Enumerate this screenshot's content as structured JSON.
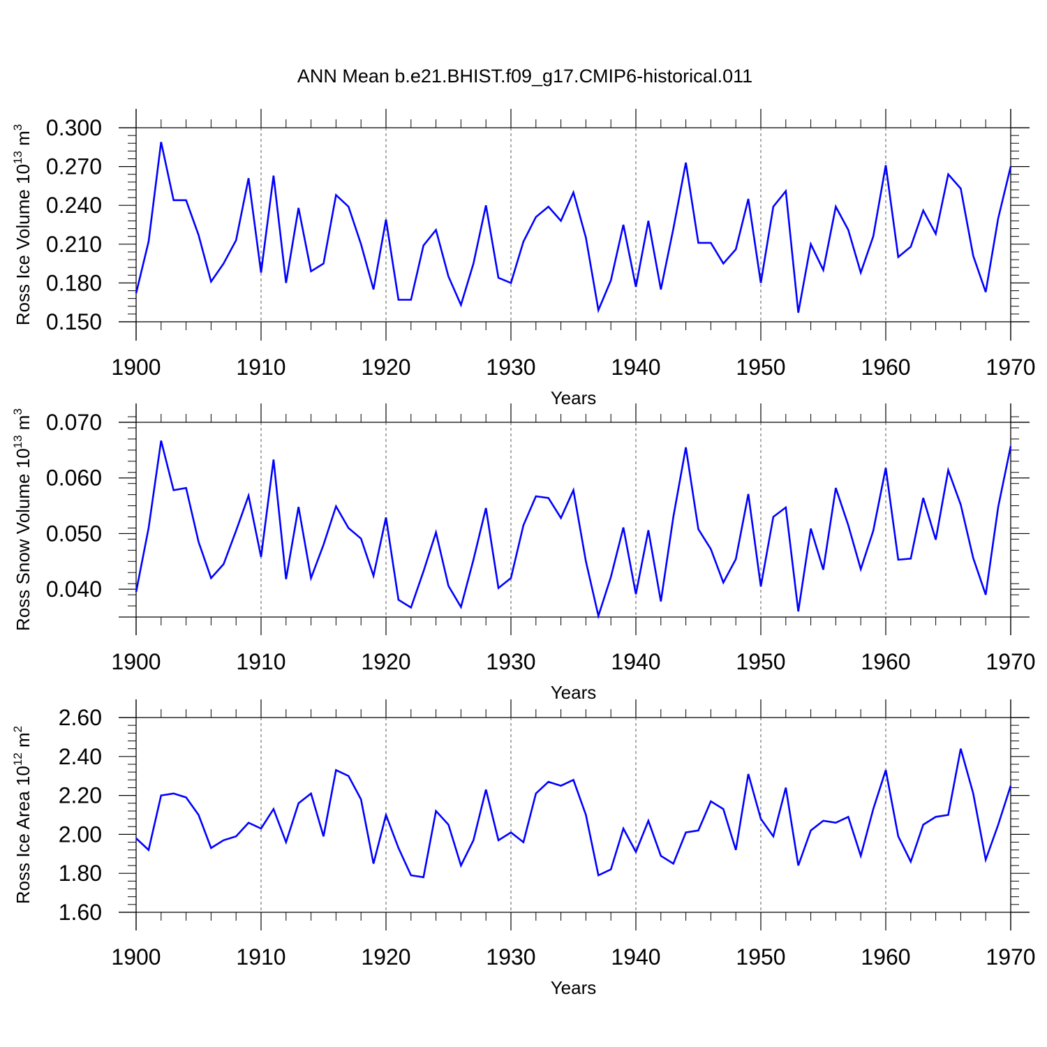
{
  "figure": {
    "title": "ANN Mean b.e21.BHIST.f09_g17.CMIP6-historical.011",
    "line_color": "#0000ff"
  },
  "chart_data": [
    {
      "type": "line",
      "title": "",
      "xlabel": "Years",
      "ylabel_main": "Ross Ice Volume 10",
      "ylabel_exp": "13",
      "ylabel_unit": " m",
      "ylabel_unit_exp": "3",
      "xlim": [
        1900,
        1970
      ],
      "ylim": [
        0.15,
        0.3
      ],
      "xticks": [
        1900,
        1910,
        1920,
        1930,
        1940,
        1950,
        1960,
        1970
      ],
      "xtick_labels": [
        "1900",
        "1910",
        "1920",
        "1930",
        "1940",
        "1950",
        "1960",
        "1970"
      ],
      "yticks": [
        0.15,
        0.18,
        0.21,
        0.24,
        0.27,
        0.3
      ],
      "ytick_labels": [
        "0.150",
        "0.180",
        "0.210",
        "0.240",
        "0.270",
        "0.300"
      ],
      "yminor_step": 0.006,
      "grid": "vertical dashed at major x ticks",
      "series": [
        {
          "x": [
            1900,
            1901,
            1902,
            1903,
            1904,
            1905,
            1906,
            1907,
            1908,
            1909,
            1910,
            1911,
            1912,
            1913,
            1914,
            1915,
            1916,
            1917,
            1918,
            1919,
            1920,
            1921,
            1922,
            1923,
            1924,
            1925,
            1926,
            1927,
            1928,
            1929,
            1930,
            1931,
            1932,
            1933,
            1934,
            1935,
            1936,
            1937,
            1938,
            1939,
            1940,
            1941,
            1942,
            1943,
            1944,
            1945,
            1946,
            1947,
            1948,
            1949,
            1950,
            1951,
            1952,
            1953,
            1954,
            1955,
            1956,
            1957,
            1958,
            1959,
            1960,
            1961,
            1962,
            1963,
            1964,
            1965,
            1966,
            1967,
            1968,
            1969,
            1970
          ],
          "values": [
            0.172,
            0.212,
            0.289,
            0.244,
            0.244,
            0.217,
            0.181,
            0.195,
            0.213,
            0.261,
            0.188,
            0.263,
            0.18,
            0.238,
            0.189,
            0.195,
            0.248,
            0.239,
            0.21,
            0.175,
            0.229,
            0.167,
            0.167,
            0.209,
            0.221,
            0.185,
            0.163,
            0.195,
            0.24,
            0.184,
            0.18,
            0.212,
            0.231,
            0.239,
            0.228,
            0.25,
            0.215,
            0.159,
            0.182,
            0.225,
            0.177,
            0.228,
            0.175,
            0.222,
            0.273,
            0.211,
            0.211,
            0.195,
            0.206,
            0.245,
            0.18,
            0.239,
            0.251,
            0.157,
            0.21,
            0.19,
            0.239,
            0.221,
            0.188,
            0.216,
            0.271,
            0.2,
            0.208,
            0.236,
            0.218,
            0.264,
            0.253,
            0.201,
            0.173,
            0.23,
            0.27
          ]
        }
      ]
    },
    {
      "type": "line",
      "title": "",
      "xlabel": "Years",
      "ylabel_main": "Ross Snow Volume 10",
      "ylabel_exp": "13",
      "ylabel_unit": " m",
      "ylabel_unit_exp": "3",
      "xlim": [
        1900,
        1970
      ],
      "ylim": [
        0.035,
        0.07
      ],
      "xticks": [
        1900,
        1910,
        1920,
        1930,
        1940,
        1950,
        1960,
        1970
      ],
      "xtick_labels": [
        "1900",
        "1910",
        "1920",
        "1930",
        "1940",
        "1950",
        "1960",
        "1970"
      ],
      "yticks": [
        0.04,
        0.05,
        0.06,
        0.07
      ],
      "ytick_labels": [
        "0.040",
        "0.050",
        "0.060",
        "0.070"
      ],
      "yminor_step": 0.002,
      "grid": "vertical dashed at major x ticks",
      "series": [
        {
          "x": [
            1900,
            1901,
            1902,
            1903,
            1904,
            1905,
            1906,
            1907,
            1908,
            1909,
            1910,
            1911,
            1912,
            1913,
            1914,
            1915,
            1916,
            1917,
            1918,
            1919,
            1920,
            1921,
            1922,
            1923,
            1924,
            1925,
            1926,
            1927,
            1928,
            1929,
            1930,
            1931,
            1932,
            1933,
            1934,
            1935,
            1936,
            1937,
            1938,
            1939,
            1940,
            1941,
            1942,
            1943,
            1944,
            1945,
            1946,
            1947,
            1948,
            1949,
            1950,
            1951,
            1952,
            1953,
            1954,
            1955,
            1956,
            1957,
            1958,
            1959,
            1960,
            1961,
            1962,
            1963,
            1964,
            1965,
            1966,
            1967,
            1968,
            1969,
            1970
          ],
          "values": [
            0.0395,
            0.051,
            0.0667,
            0.0578,
            0.0582,
            0.0485,
            0.042,
            0.0445,
            0.0505,
            0.0568,
            0.0458,
            0.0633,
            0.0418,
            0.0548,
            0.042,
            0.048,
            0.0549,
            0.051,
            0.0491,
            0.0424,
            0.0529,
            0.0381,
            0.0367,
            0.0432,
            0.0502,
            0.0406,
            0.0368,
            0.0453,
            0.0546,
            0.0402,
            0.042,
            0.0515,
            0.0567,
            0.0564,
            0.0528,
            0.0578,
            0.045,
            0.0352,
            0.0422,
            0.0511,
            0.0391,
            0.0506,
            0.0378,
            0.053,
            0.0655,
            0.0508,
            0.0472,
            0.0412,
            0.0454,
            0.0571,
            0.0405,
            0.053,
            0.0547,
            0.036,
            0.0509,
            0.0435,
            0.0582,
            0.0515,
            0.0436,
            0.0505,
            0.0618,
            0.0453,
            0.0455,
            0.0564,
            0.0489,
            0.0614,
            0.0552,
            0.0456,
            0.039,
            0.0548,
            0.0657
          ]
        }
      ]
    },
    {
      "type": "line",
      "title": "",
      "xlabel": "Years",
      "ylabel_main": "Ross Ice Area 10",
      "ylabel_exp": "12",
      "ylabel_unit": " m",
      "ylabel_unit_exp": "2",
      "xlim": [
        1900,
        1970
      ],
      "ylim": [
        1.6,
        2.6
      ],
      "xticks": [
        1900,
        1910,
        1920,
        1930,
        1940,
        1950,
        1960,
        1970
      ],
      "xtick_labels": [
        "1900",
        "1910",
        "1920",
        "1930",
        "1940",
        "1950",
        "1960",
        "1970"
      ],
      "yticks": [
        1.6,
        1.8,
        2.0,
        2.2,
        2.4,
        2.6
      ],
      "ytick_labels": [
        "1.60",
        "1.80",
        "2.00",
        "2.20",
        "2.40",
        "2.60"
      ],
      "yminor_step": 0.04,
      "grid": "vertical dashed at major x ticks",
      "series": [
        {
          "x": [
            1900,
            1901,
            1902,
            1903,
            1904,
            1905,
            1906,
            1907,
            1908,
            1909,
            1910,
            1911,
            1912,
            1913,
            1914,
            1915,
            1916,
            1917,
            1918,
            1919,
            1920,
            1921,
            1922,
            1923,
            1924,
            1925,
            1926,
            1927,
            1928,
            1929,
            1930,
            1931,
            1932,
            1933,
            1934,
            1935,
            1936,
            1937,
            1938,
            1939,
            1940,
            1941,
            1942,
            1943,
            1944,
            1945,
            1946,
            1947,
            1948,
            1949,
            1950,
            1951,
            1952,
            1953,
            1954,
            1955,
            1956,
            1957,
            1958,
            1959,
            1960,
            1961,
            1962,
            1963,
            1964,
            1965,
            1966,
            1967,
            1968,
            1969,
            1970
          ],
          "values": [
            1.98,
            1.92,
            2.2,
            2.21,
            2.19,
            2.1,
            1.93,
            1.97,
            1.99,
            2.06,
            2.03,
            2.13,
            1.96,
            2.16,
            2.21,
            1.99,
            2.33,
            2.3,
            2.18,
            1.85,
            2.1,
            1.93,
            1.79,
            1.78,
            2.12,
            2.05,
            1.84,
            1.97,
            2.23,
            1.97,
            2.01,
            1.96,
            2.21,
            2.27,
            2.25,
            2.28,
            2.1,
            1.79,
            1.82,
            2.03,
            1.91,
            2.07,
            1.89,
            1.85,
            2.01,
            2.02,
            2.17,
            2.13,
            1.92,
            2.31,
            2.08,
            1.99,
            2.24,
            1.84,
            2.02,
            2.07,
            2.06,
            2.09,
            1.89,
            2.13,
            2.33,
            1.99,
            1.86,
            2.05,
            2.09,
            2.1,
            2.44,
            2.21,
            1.87,
            2.05,
            2.25
          ]
        }
      ]
    }
  ]
}
